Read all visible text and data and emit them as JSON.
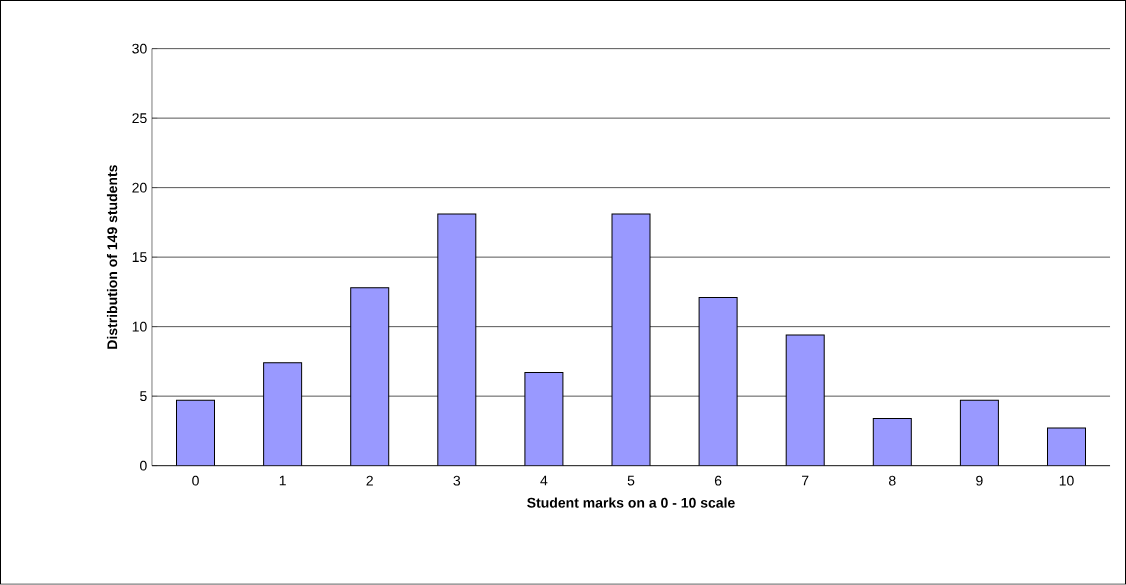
{
  "chart_data": {
    "type": "bar",
    "xlabel": "Student marks on a 0 - 10 scale",
    "ylabel": "Distribution of 149 students",
    "categories": [
      "0",
      "1",
      "2",
      "3",
      "4",
      "5",
      "6",
      "7",
      "8",
      "9",
      "10"
    ],
    "values": [
      4.7,
      7.4,
      12.8,
      18.1,
      6.7,
      18.1,
      12.1,
      9.4,
      3.4,
      4.7,
      2.7
    ],
    "color": "#9999ff",
    "ylim": [
      0,
      30
    ],
    "yticks": [
      0,
      5,
      10,
      15,
      20,
      25,
      30
    ],
    "grid": "y"
  }
}
